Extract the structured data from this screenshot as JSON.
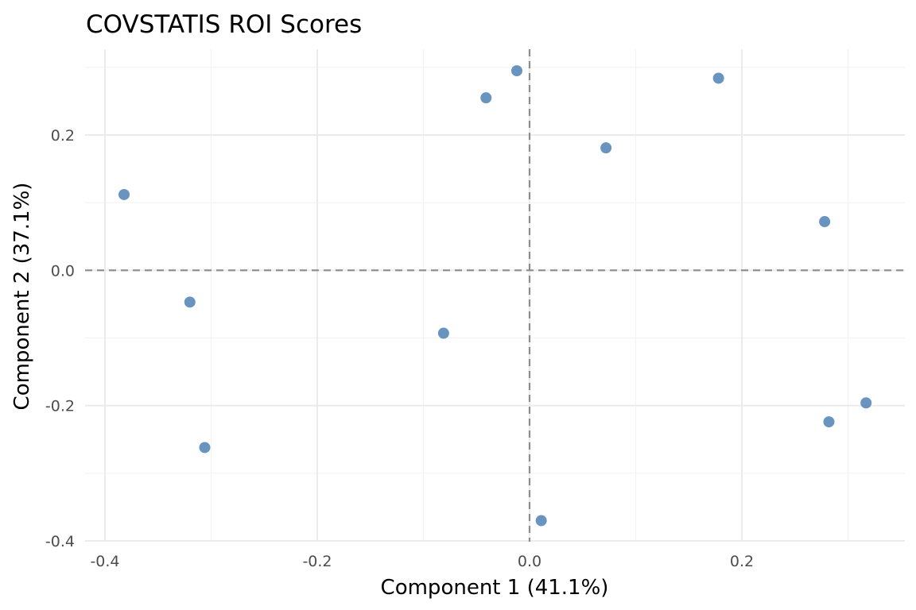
{
  "chart_data": {
    "type": "scatter",
    "title": "COVSTATIS ROI Scores",
    "xlabel": "Component 1 (41.1%)",
    "ylabel": "Component 2 (37.1%)",
    "xlim": [
      -0.4,
      0.35
    ],
    "ylim": [
      -0.4,
      0.3
    ],
    "x_ticks": [
      -0.4,
      -0.2,
      0.0,
      0.2
    ],
    "x_tick_labels": [
      "-0.4",
      "-0.2",
      "0.0",
      "0.2"
    ],
    "y_ticks": [
      -0.4,
      -0.2,
      0.0,
      0.2
    ],
    "y_tick_labels": [
      "-0.4",
      "-0.2",
      "0.0",
      "0.2"
    ],
    "x_minor_ticks": [
      -0.3,
      -0.1,
      0.1,
      0.3
    ],
    "y_minor_ticks": [
      -0.3,
      -0.1,
      0.1,
      0.3
    ],
    "reference_lines": {
      "x": 0.0,
      "y": 0.0
    },
    "grid": true,
    "legend": "none",
    "point_color": "#4f81b4",
    "points": [
      {
        "x": -0.382,
        "y": 0.112
      },
      {
        "x": -0.32,
        "y": -0.047
      },
      {
        "x": -0.306,
        "y": -0.262
      },
      {
        "x": -0.081,
        "y": -0.093
      },
      {
        "x": -0.041,
        "y": 0.255
      },
      {
        "x": -0.012,
        "y": 0.295
      },
      {
        "x": 0.011,
        "y": -0.37
      },
      {
        "x": 0.072,
        "y": 0.181
      },
      {
        "x": 0.178,
        "y": 0.284
      },
      {
        "x": 0.278,
        "y": 0.072
      },
      {
        "x": 0.282,
        "y": -0.224
      },
      {
        "x": 0.317,
        "y": -0.196
      }
    ]
  }
}
